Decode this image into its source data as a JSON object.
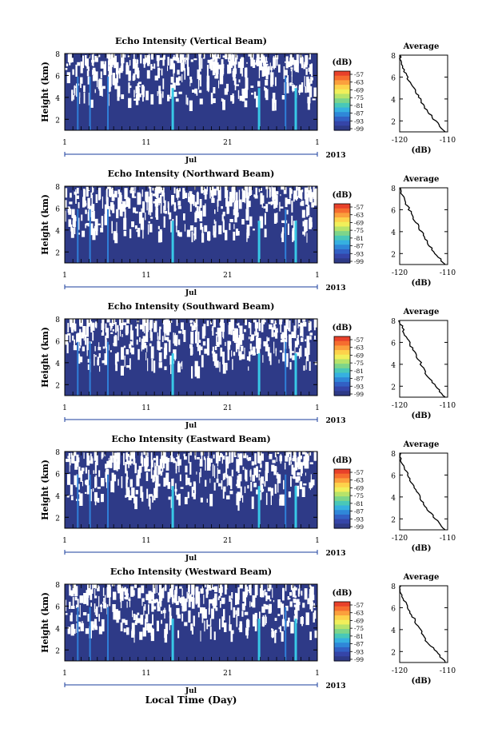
{
  "chart_data": {
    "type": "heatmap",
    "panels": [
      {
        "title": "Echo Intensity (Vertical Beam)",
        "xlabel": "",
        "ylabel": "Height (km)",
        "ylim": [
          1,
          8
        ],
        "profile": {
          "x": [
            -120,
            -119.6,
            -118.5,
            -117,
            -115.8,
            -114.5,
            -112.5,
            -110.5
          ],
          "y": [
            8,
            7,
            6,
            5,
            4,
            3,
            2,
            1
          ]
        }
      },
      {
        "title": "Echo Intensity (Northward Beam)",
        "xlabel": "",
        "ylabel": "Height (km)",
        "ylim": [
          1,
          8
        ],
        "profile": {
          "x": [
            -120,
            -119.2,
            -118,
            -116.8,
            -115.5,
            -114.2,
            -112.5,
            -110.5
          ],
          "y": [
            8,
            7,
            6,
            5,
            4,
            3,
            2,
            1
          ]
        }
      },
      {
        "title": "Echo Intensity (Southward Beam)",
        "xlabel": "",
        "ylabel": "Height (km)",
        "ylim": [
          1,
          8
        ],
        "profile": {
          "x": [
            -120,
            -119.2,
            -118,
            -116.8,
            -115.5,
            -114.5,
            -112.5,
            -110.5
          ],
          "y": [
            8,
            7,
            6,
            5,
            4,
            3,
            2,
            1
          ]
        }
      },
      {
        "title": "Echo Intensity (Eastward Beam)",
        "xlabel": "",
        "ylabel": "Height (km)",
        "ylim": [
          1,
          8
        ],
        "profile": {
          "x": [
            -120,
            -119.5,
            -118.3,
            -117,
            -115.8,
            -114.5,
            -112.5,
            -110.5
          ],
          "y": [
            8,
            7,
            6,
            5,
            4,
            3,
            2,
            1
          ]
        }
      },
      {
        "title": "Echo Intensity (Westward Beam)",
        "xlabel": "Local Time (Day)",
        "ylabel": "Height (km)",
        "ylim": [
          1,
          8
        ],
        "profile": {
          "x": [
            -120,
            -119.5,
            -118.3,
            -117,
            -115.8,
            -114.5,
            -112.5,
            -110.5
          ],
          "y": [
            8,
            7,
            6,
            5,
            4,
            3,
            2,
            1
          ]
        }
      }
    ],
    "x_ticks": [
      "1",
      "11",
      "21",
      "1"
    ],
    "month_label": "Jul",
    "year_label": "2013",
    "y_ticks": [
      "2",
      "4",
      "6",
      "8"
    ],
    "colorbar": {
      "unit": "(dB)",
      "ticks": [
        "-57",
        "-63",
        "-69",
        "-75",
        "-81",
        "-87",
        "-93",
        "-99"
      ]
    },
    "profile_title": "Average",
    "profile_xticks": [
      "-120",
      "-110"
    ],
    "profile_xlabel": "(dB)",
    "profile_xlim": [
      -120,
      -110
    ],
    "colors": {
      "background": "#2e3a87",
      "column_bright": "#38c8e6",
      "column_mid": "#2f7fd8"
    }
  }
}
